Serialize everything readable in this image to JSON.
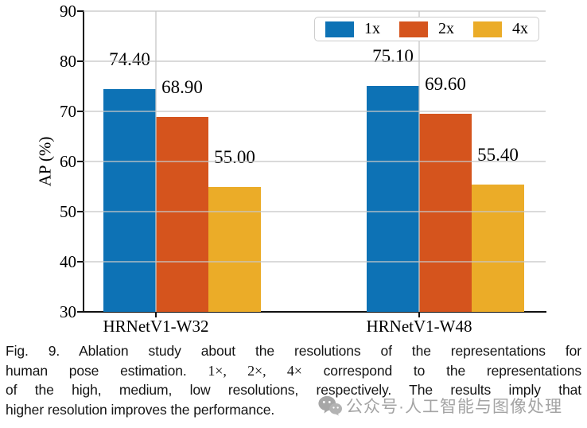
{
  "chart_data": {
    "type": "bar",
    "title": "",
    "xlabel": "",
    "ylabel": "AP (%)",
    "ylim": [
      30,
      90
    ],
    "yticks": [
      30,
      40,
      50,
      60,
      70,
      80,
      90
    ],
    "categories": [
      "HRNetV1-W32",
      "HRNetV1-W48"
    ],
    "series": [
      {
        "name": "1x",
        "color": "#0d72b5",
        "values": [
          74.4,
          75.1
        ]
      },
      {
        "name": "2x",
        "color": "#d5541d",
        "values": [
          68.9,
          69.6
        ]
      },
      {
        "name": "4x",
        "color": "#ebac28",
        "values": [
          55.0,
          55.4
        ]
      }
    ],
    "value_label_format": "2dp",
    "grid": true,
    "legend_position": "top-right"
  },
  "caption": {
    "lines": [
      [
        {
          "t": "Fig. 9. Ablation study about the resolutions of the representations for",
          "f": "sans"
        }
      ],
      [
        {
          "t": "human pose estimation. ",
          "f": "sans"
        },
        {
          "t": "1×, 2×, 4×",
          "f": "math"
        },
        {
          "t": " correspond to the representations",
          "f": "sans"
        }
      ],
      [
        {
          "t": "of the high, medium, low resolutions, respectively. The results imply that",
          "f": "sans"
        }
      ],
      [
        {
          "t": "higher resolution improves the performance.",
          "f": "sans"
        }
      ]
    ]
  },
  "watermark": {
    "icon": "wechat-icon",
    "text": "公众号·人工智能与图像处理",
    "color": "#949494"
  },
  "colors": {
    "axis": "#111111",
    "grid": "#c6c6c6",
    "legend_border": "#cdcdcd"
  }
}
